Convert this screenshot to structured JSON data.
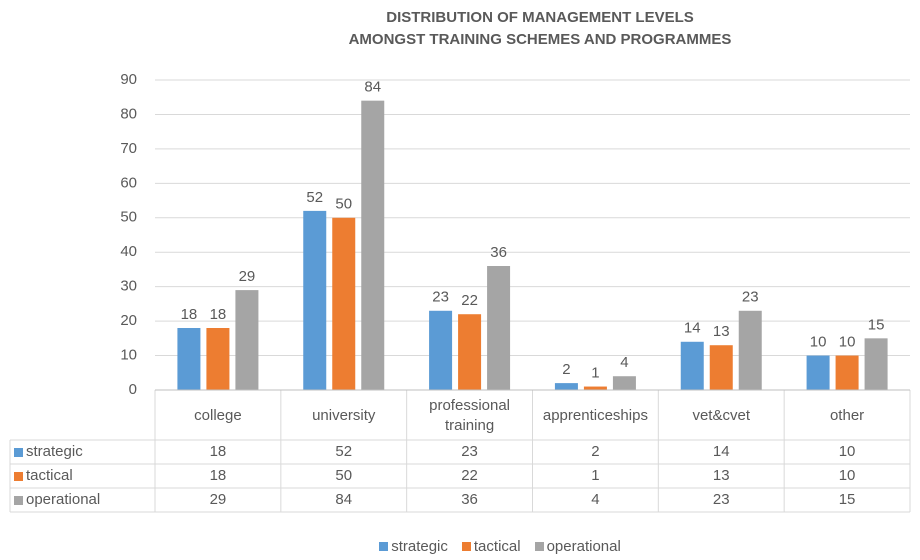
{
  "chart_data": {
    "type": "bar",
    "title": [
      "DISTRIBUTION OF MANAGEMENT LEVELS",
      "AMONGST TRAINING SCHEMES AND PROGRAMMES"
    ],
    "categories": [
      "college",
      "university",
      "professional training",
      "apprenticeships",
      "vet&cvet",
      "other"
    ],
    "series": [
      {
        "name": "strategic",
        "color": "#5b9bd5",
        "values": [
          18,
          52,
          23,
          2,
          14,
          10
        ]
      },
      {
        "name": "tactical",
        "color": "#ed7d31",
        "values": [
          18,
          50,
          22,
          1,
          13,
          10
        ]
      },
      {
        "name": "operational",
        "color": "#a5a5a5",
        "values": [
          29,
          84,
          36,
          4,
          23,
          15
        ]
      }
    ],
    "ylim": [
      0,
      90
    ],
    "yticks": [
      0,
      10,
      20,
      30,
      40,
      50,
      60,
      70,
      80,
      90
    ],
    "grid": true,
    "legend": "bottom",
    "data_table": true
  }
}
